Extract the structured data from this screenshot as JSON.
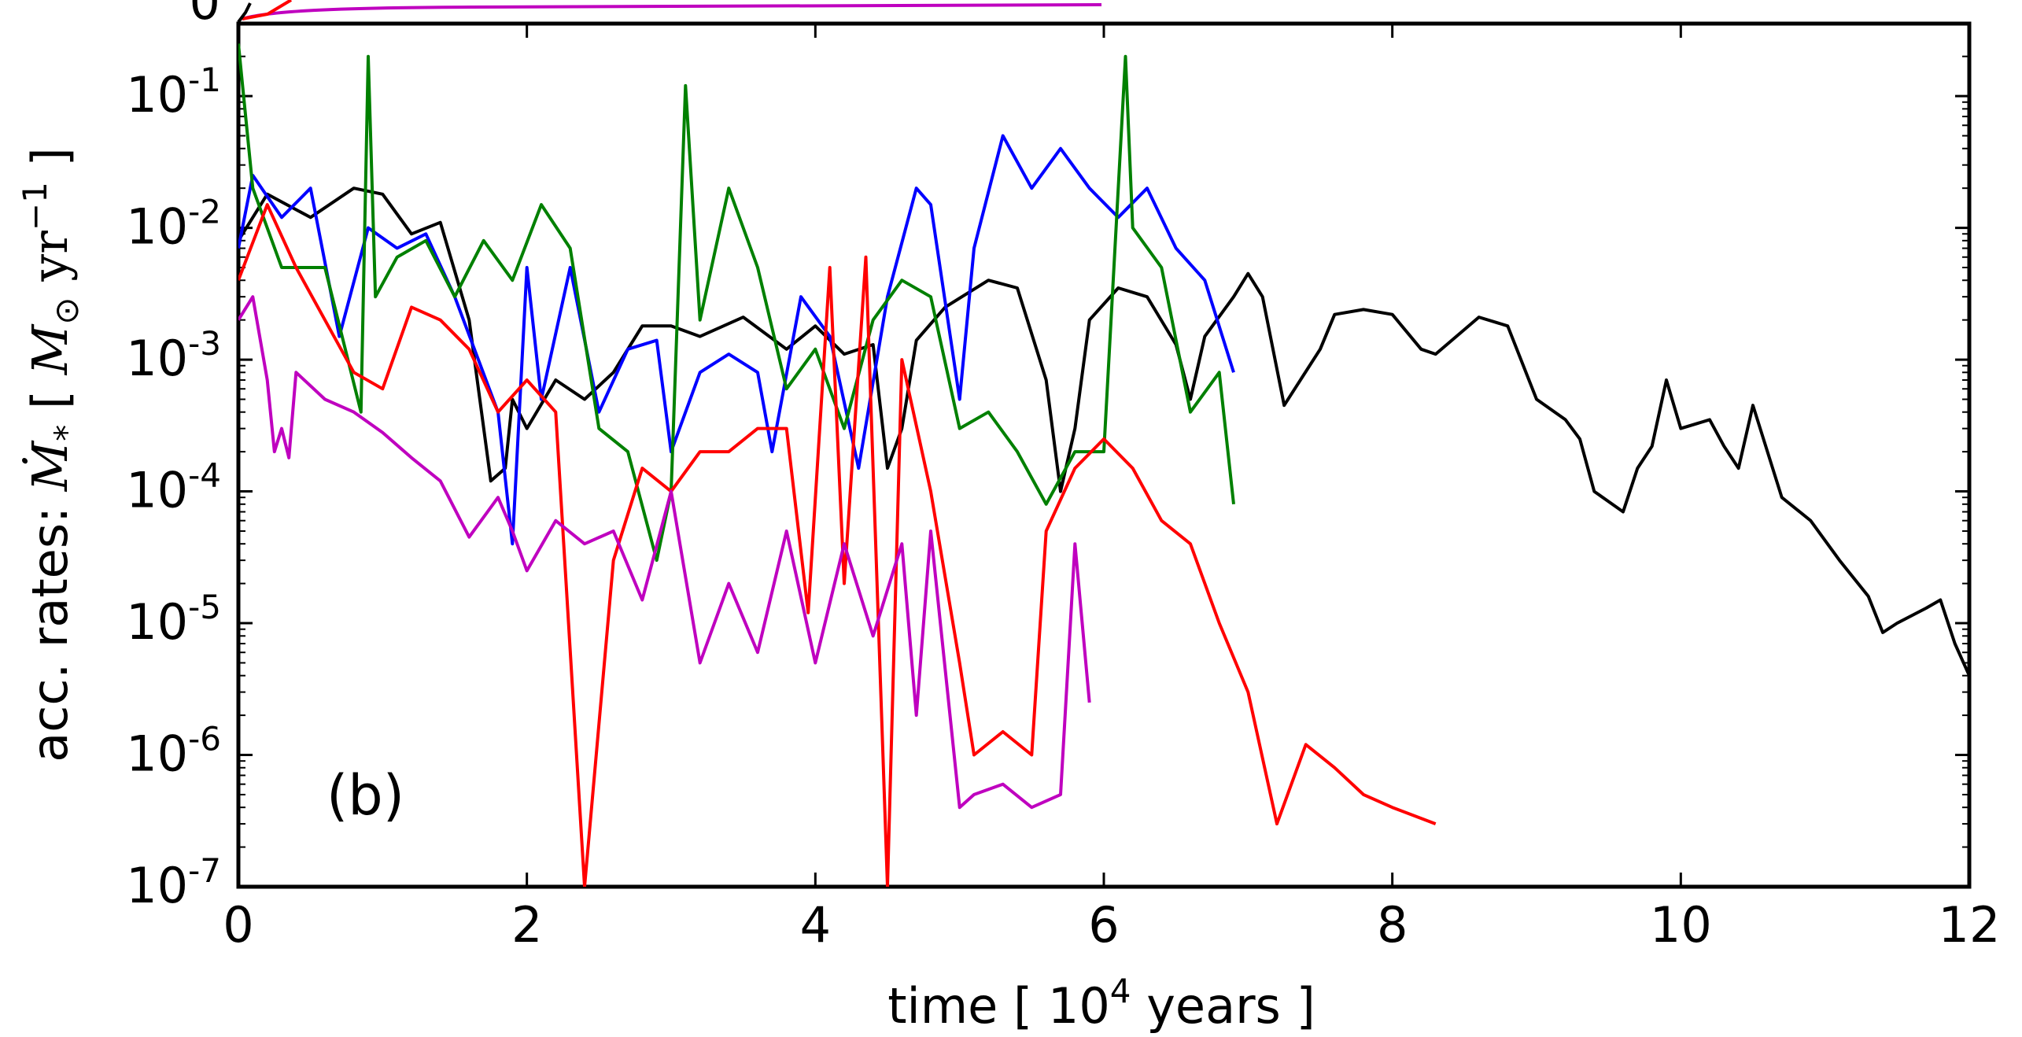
{
  "chart_data": {
    "type": "line",
    "panel_label": "(b)",
    "top_panel_visible_tick": "0",
    "xlabel": {
      "prefix": "time [ 10",
      "sup": "4",
      "suffix": "  years ]"
    },
    "ylabel": {
      "prefix": "acc. rates: ",
      "symbol": "Ṁ",
      "sub": "*",
      "open": " [ ",
      "msun": "M",
      "msun_sub": "⊙",
      "unit": " yr",
      "unit_sup": "−1",
      "close": " ]"
    },
    "xlim": [
      0,
      12
    ],
    "ylim": [
      1e-07,
      0.3
    ],
    "yscale": "log",
    "x_ticks": [
      0,
      2,
      4,
      6,
      8,
      10,
      12
    ],
    "x_tick_labels": [
      "0",
      "2",
      "4",
      "6",
      "8",
      "10",
      "12"
    ],
    "y_ticks": [
      0.1,
      0.01,
      0.001,
      0.0001,
      1e-05,
      1e-06,
      1e-07
    ],
    "y_tick_labels": [
      {
        "base": "10",
        "exp": "-1"
      },
      {
        "base": "10",
        "exp": "-2"
      },
      {
        "base": "10",
        "exp": "-3"
      },
      {
        "base": "10",
        "exp": "-4"
      },
      {
        "base": "10",
        "exp": "-5"
      },
      {
        "base": "10",
        "exp": "-6"
      },
      {
        "base": "10",
        "exp": "-7"
      }
    ],
    "grid": false,
    "legend": "none",
    "series": [
      {
        "color": "#000000",
        "points": [
          [
            0,
            0.008
          ],
          [
            0.2,
            0.018
          ],
          [
            0.5,
            0.012
          ],
          [
            0.8,
            0.02
          ],
          [
            1.0,
            0.018
          ],
          [
            1.2,
            0.009
          ],
          [
            1.4,
            0.011
          ],
          [
            1.6,
            0.002
          ],
          [
            1.75,
            0.00012
          ],
          [
            1.85,
            0.00015
          ],
          [
            1.9,
            0.0005
          ],
          [
            2.0,
            0.0003
          ],
          [
            2.2,
            0.0007
          ],
          [
            2.4,
            0.0005
          ],
          [
            2.6,
            0.0008
          ],
          [
            2.8,
            0.0018
          ],
          [
            3.0,
            0.0018
          ],
          [
            3.2,
            0.0015
          ],
          [
            3.5,
            0.0021
          ],
          [
            3.8,
            0.0012
          ],
          [
            4.0,
            0.0018
          ],
          [
            4.2,
            0.0011
          ],
          [
            4.4,
            0.0013
          ],
          [
            4.5,
            0.00015
          ],
          [
            4.6,
            0.0003
          ],
          [
            4.7,
            0.0014
          ],
          [
            4.9,
            0.0025
          ],
          [
            5.2,
            0.004
          ],
          [
            5.4,
            0.0035
          ],
          [
            5.6,
            0.0007
          ],
          [
            5.7,
            0.0001
          ],
          [
            5.8,
            0.0003
          ],
          [
            5.9,
            0.002
          ],
          [
            6.1,
            0.0035
          ],
          [
            6.3,
            0.003
          ],
          [
            6.5,
            0.0013
          ],
          [
            6.6,
            0.0005
          ],
          [
            6.7,
            0.0015
          ],
          [
            6.9,
            0.003
          ],
          [
            7.0,
            0.0045
          ],
          [
            7.1,
            0.003
          ],
          [
            7.25,
            0.00045
          ],
          [
            7.5,
            0.0012
          ],
          [
            7.6,
            0.0022
          ],
          [
            7.8,
            0.0024
          ],
          [
            8.0,
            0.0022
          ],
          [
            8.2,
            0.0012
          ],
          [
            8.3,
            0.0011
          ],
          [
            8.6,
            0.0021
          ],
          [
            8.8,
            0.0018
          ],
          [
            9.0,
            0.0005
          ],
          [
            9.2,
            0.00035
          ],
          [
            9.3,
            0.00025
          ],
          [
            9.4,
            0.0001
          ],
          [
            9.6,
            7e-05
          ],
          [
            9.7,
            0.00015
          ],
          [
            9.8,
            0.00022
          ],
          [
            9.9,
            0.0007
          ],
          [
            10.0,
            0.0003
          ],
          [
            10.2,
            0.00035
          ],
          [
            10.3,
            0.00022
          ],
          [
            10.4,
            0.00015
          ],
          [
            10.5,
            0.00045
          ],
          [
            10.7,
            9e-05
          ],
          [
            10.9,
            6e-05
          ],
          [
            11.1,
            3e-05
          ],
          [
            11.3,
            1.6e-05
          ],
          [
            11.4,
            8.5e-06
          ],
          [
            11.5,
            1e-05
          ],
          [
            11.7,
            1.3e-05
          ],
          [
            11.8,
            1.5e-05
          ],
          [
            11.9,
            7e-06
          ],
          [
            12.0,
            4e-06
          ]
        ]
      },
      {
        "color": "#0000ff",
        "points": [
          [
            0,
            0.007
          ],
          [
            0.1,
            0.025
          ],
          [
            0.3,
            0.012
          ],
          [
            0.5,
            0.02
          ],
          [
            0.7,
            0.0015
          ],
          [
            0.9,
            0.01
          ],
          [
            1.1,
            0.007
          ],
          [
            1.3,
            0.009
          ],
          [
            1.5,
            0.003
          ],
          [
            1.8,
            0.0004
          ],
          [
            1.9,
            4e-05
          ],
          [
            2.0,
            0.005
          ],
          [
            2.1,
            0.0005
          ],
          [
            2.3,
            0.005
          ],
          [
            2.5,
            0.0004
          ],
          [
            2.7,
            0.0012
          ],
          [
            2.9,
            0.0014
          ],
          [
            3.0,
            0.0002
          ],
          [
            3.2,
            0.0008
          ],
          [
            3.4,
            0.0011
          ],
          [
            3.6,
            0.0008
          ],
          [
            3.7,
            0.0002
          ],
          [
            3.9,
            0.003
          ],
          [
            4.1,
            0.0015
          ],
          [
            4.3,
            0.00015
          ],
          [
            4.5,
            0.003
          ],
          [
            4.7,
            0.02
          ],
          [
            4.8,
            0.015
          ],
          [
            5.0,
            0.0005
          ],
          [
            5.1,
            0.007
          ],
          [
            5.3,
            0.05
          ],
          [
            5.5,
            0.02
          ],
          [
            5.7,
            0.04
          ],
          [
            5.9,
            0.02
          ],
          [
            6.1,
            0.012
          ],
          [
            6.3,
            0.02
          ],
          [
            6.5,
            0.007
          ],
          [
            6.7,
            0.004
          ],
          [
            6.9,
            0.0008
          ]
        ]
      },
      {
        "color": "#008000",
        "points": [
          [
            0,
            0.25
          ],
          [
            0.1,
            0.02
          ],
          [
            0.3,
            0.005
          ],
          [
            0.6,
            0.005
          ],
          [
            0.85,
            0.0004
          ],
          [
            0.9,
            0.2
          ],
          [
            0.95,
            0.003
          ],
          [
            1.1,
            0.006
          ],
          [
            1.3,
            0.008
          ],
          [
            1.5,
            0.003
          ],
          [
            1.7,
            0.008
          ],
          [
            1.9,
            0.004
          ],
          [
            2.1,
            0.015
          ],
          [
            2.3,
            0.007
          ],
          [
            2.5,
            0.0003
          ],
          [
            2.7,
            0.0002
          ],
          [
            2.9,
            3e-05
          ],
          [
            3.0,
            0.0001
          ],
          [
            3.1,
            0.12
          ],
          [
            3.2,
            0.002
          ],
          [
            3.4,
            0.02
          ],
          [
            3.6,
            0.005
          ],
          [
            3.8,
            0.0006
          ],
          [
            4.0,
            0.0012
          ],
          [
            4.2,
            0.0003
          ],
          [
            4.4,
            0.002
          ],
          [
            4.6,
            0.004
          ],
          [
            4.8,
            0.003
          ],
          [
            5.0,
            0.0003
          ],
          [
            5.2,
            0.0004
          ],
          [
            5.4,
            0.0002
          ],
          [
            5.6,
            8e-05
          ],
          [
            5.8,
            0.0002
          ],
          [
            6.0,
            0.0002
          ],
          [
            6.15,
            0.2
          ],
          [
            6.2,
            0.01
          ],
          [
            6.4,
            0.005
          ],
          [
            6.6,
            0.0004
          ],
          [
            6.8,
            0.0008
          ],
          [
            6.9,
            8e-05
          ]
        ]
      },
      {
        "color": "#ff0000",
        "points": [
          [
            0,
            0.004
          ],
          [
            0.2,
            0.015
          ],
          [
            0.4,
            0.005
          ],
          [
            0.6,
            0.002
          ],
          [
            0.8,
            0.0008
          ],
          [
            1.0,
            0.0006
          ],
          [
            1.2,
            0.0025
          ],
          [
            1.4,
            0.002
          ],
          [
            1.6,
            0.0012
          ],
          [
            1.8,
            0.0004
          ],
          [
            2.0,
            0.0007
          ],
          [
            2.2,
            0.0004
          ],
          [
            2.4,
            1e-07
          ],
          [
            2.6,
            3e-05
          ],
          [
            2.8,
            0.00015
          ],
          [
            3.0,
            0.0001
          ],
          [
            3.2,
            0.0002
          ],
          [
            3.4,
            0.0002
          ],
          [
            3.6,
            0.0003
          ],
          [
            3.8,
            0.0003
          ],
          [
            3.95,
            1.2e-05
          ],
          [
            4.1,
            0.005
          ],
          [
            4.2,
            2e-05
          ],
          [
            4.35,
            0.006
          ],
          [
            4.5,
            1e-07
          ],
          [
            4.6,
            0.001
          ],
          [
            4.8,
            0.0001
          ],
          [
            5.0,
            5e-06
          ],
          [
            5.1,
            1e-06
          ],
          [
            5.3,
            1.5e-06
          ],
          [
            5.5,
            1e-06
          ],
          [
            5.6,
            5e-05
          ],
          [
            5.8,
            0.00015
          ],
          [
            6.0,
            0.00025
          ],
          [
            6.2,
            0.00015
          ],
          [
            6.4,
            6e-05
          ],
          [
            6.6,
            4e-05
          ],
          [
            6.8,
            1e-05
          ],
          [
            7.0,
            3e-06
          ],
          [
            7.2,
            3e-07
          ],
          [
            7.4,
            1.2e-06
          ],
          [
            7.6,
            8e-07
          ],
          [
            7.8,
            5e-07
          ],
          [
            8.0,
            4e-07
          ],
          [
            8.3,
            3e-07
          ]
        ]
      },
      {
        "color": "#bf00bf",
        "points": [
          [
            0,
            0.002
          ],
          [
            0.1,
            0.003
          ],
          [
            0.2,
            0.0007
          ],
          [
            0.25,
            0.0002
          ],
          [
            0.3,
            0.0003
          ],
          [
            0.35,
            0.00018
          ],
          [
            0.4,
            0.0008
          ],
          [
            0.6,
            0.0005
          ],
          [
            0.8,
            0.0004
          ],
          [
            1.0,
            0.00028
          ],
          [
            1.2,
            0.00018
          ],
          [
            1.4,
            0.00012
          ],
          [
            1.6,
            4.5e-05
          ],
          [
            1.8,
            9e-05
          ],
          [
            1.9,
            5e-05
          ],
          [
            2.0,
            2.5e-05
          ],
          [
            2.2,
            6e-05
          ],
          [
            2.4,
            4e-05
          ],
          [
            2.6,
            5e-05
          ],
          [
            2.8,
            1.5e-05
          ],
          [
            3.0,
            0.0001
          ],
          [
            3.2,
            5e-06
          ],
          [
            3.4,
            2e-05
          ],
          [
            3.6,
            6e-06
          ],
          [
            3.8,
            5e-05
          ],
          [
            4.0,
            5e-06
          ],
          [
            4.2,
            4e-05
          ],
          [
            4.4,
            8e-06
          ],
          [
            4.6,
            4e-05
          ],
          [
            4.7,
            2e-06
          ],
          [
            4.8,
            5e-05
          ],
          [
            5.0,
            4e-07
          ],
          [
            5.1,
            5e-07
          ],
          [
            5.3,
            6e-07
          ],
          [
            5.5,
            4e-07
          ],
          [
            5.7,
            5e-07
          ],
          [
            5.8,
            4e-05
          ],
          [
            5.9,
            2.5e-06
          ]
        ]
      }
    ]
  }
}
